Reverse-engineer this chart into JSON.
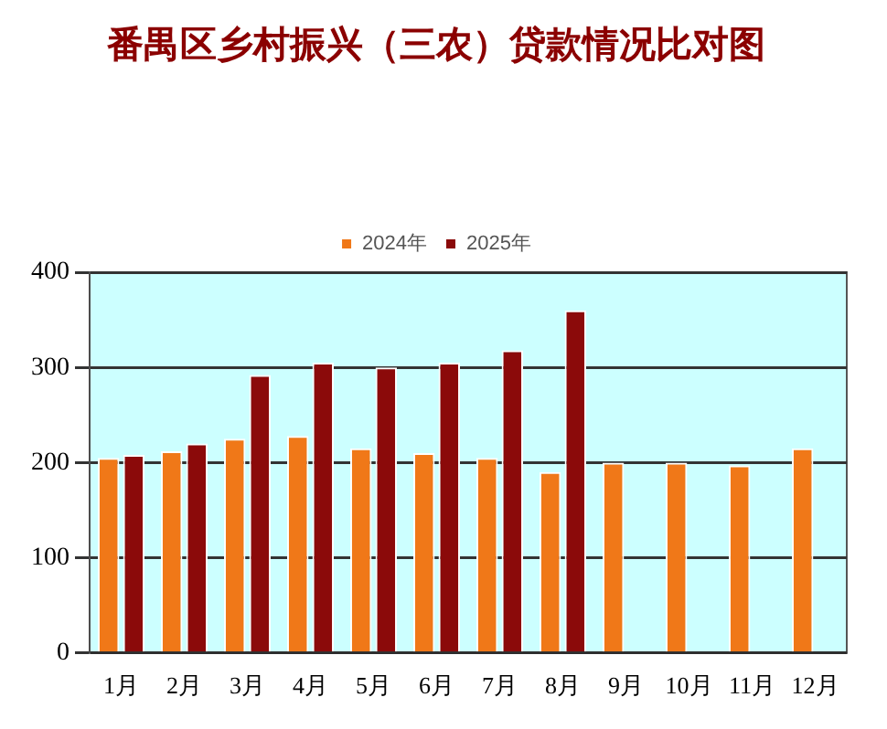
{
  "chart_data": {
    "type": "bar",
    "title": "番禺区乡村振兴（三农）贷款情况比对图",
    "categories": [
      "1月",
      "2月",
      "3月",
      "4月",
      "5月",
      "6月",
      "7月",
      "8月",
      "9月",
      "10月",
      "11月",
      "12月"
    ],
    "series": [
      {
        "name": "2024年",
        "color": "#f07818",
        "values": [
          205,
          212,
          225,
          228,
          215,
          210,
          205,
          190,
          200,
          200,
          197,
          215
        ]
      },
      {
        "name": "2025年",
        "color": "#8b0a0a",
        "values": [
          208,
          220,
          292,
          305,
          300,
          305,
          318,
          360,
          null,
          null,
          null,
          null
        ]
      }
    ],
    "ylim": [
      0,
      400
    ],
    "yticks": [
      0,
      100,
      200,
      300,
      400
    ],
    "grid": "y",
    "legend": "top"
  }
}
